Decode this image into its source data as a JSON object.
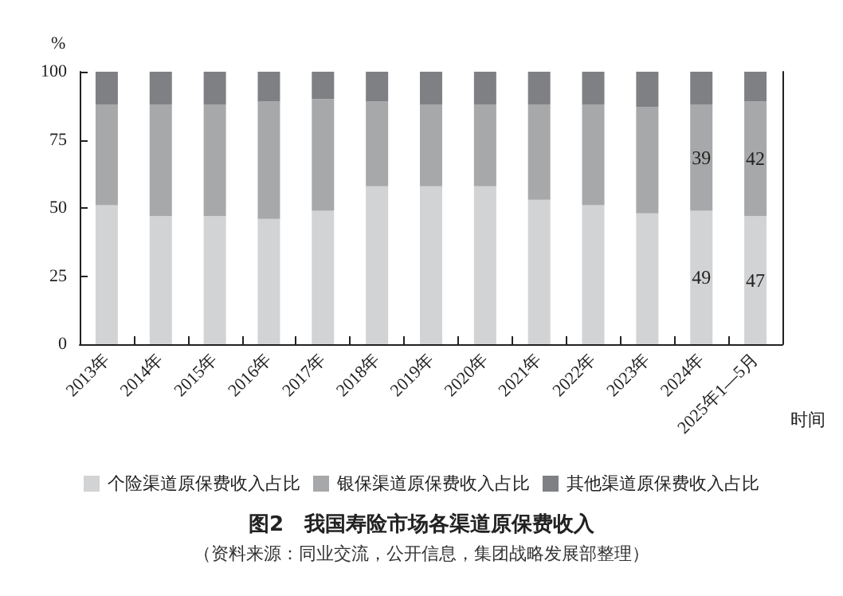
{
  "chart_data": {
    "type": "bar",
    "stacked": true,
    "title": "图2　我国寿险市场各渠道原保费收入",
    "ylabel": "%",
    "xlabel": "时间",
    "annotations": [
      "（资料来源：同业交流，公开信息，集团战略发展部整理）"
    ],
    "categories": [
      "2013年",
      "2014年",
      "2015年",
      "2016年",
      "2017年",
      "2018年",
      "2019年",
      "2020年",
      "2021年",
      "2022年",
      "2023年",
      "2024年",
      "2025年1—5月"
    ],
    "series": [
      {
        "name": "个险渠道原保费收入占比",
        "color": "#d2d3d5",
        "values": [
          51,
          47,
          47,
          46,
          49,
          58,
          58,
          58,
          53,
          51,
          48,
          49,
          47
        ],
        "value_labels": [
          null,
          null,
          null,
          null,
          null,
          null,
          null,
          null,
          null,
          null,
          null,
          "49",
          "47"
        ]
      },
      {
        "name": "银保渠道原保费收入占比",
        "color": "#a7a8aa",
        "values": [
          37,
          41,
          41,
          43,
          41,
          31,
          30,
          30,
          35,
          37,
          39,
          39,
          42
        ],
        "value_labels": [
          null,
          null,
          null,
          null,
          null,
          null,
          null,
          null,
          null,
          null,
          null,
          "39",
          "42"
        ]
      },
      {
        "name": "其他渠道原保费收入占比",
        "color": "#7f8083",
        "values": [
          12,
          12,
          12,
          11,
          10,
          11,
          12,
          12,
          12,
          12,
          13,
          12,
          11
        ]
      }
    ],
    "ylim": [
      0,
      100
    ],
    "yticks": [
      0,
      25,
      50,
      75,
      100
    ],
    "grid": false,
    "legend": "bottom"
  }
}
